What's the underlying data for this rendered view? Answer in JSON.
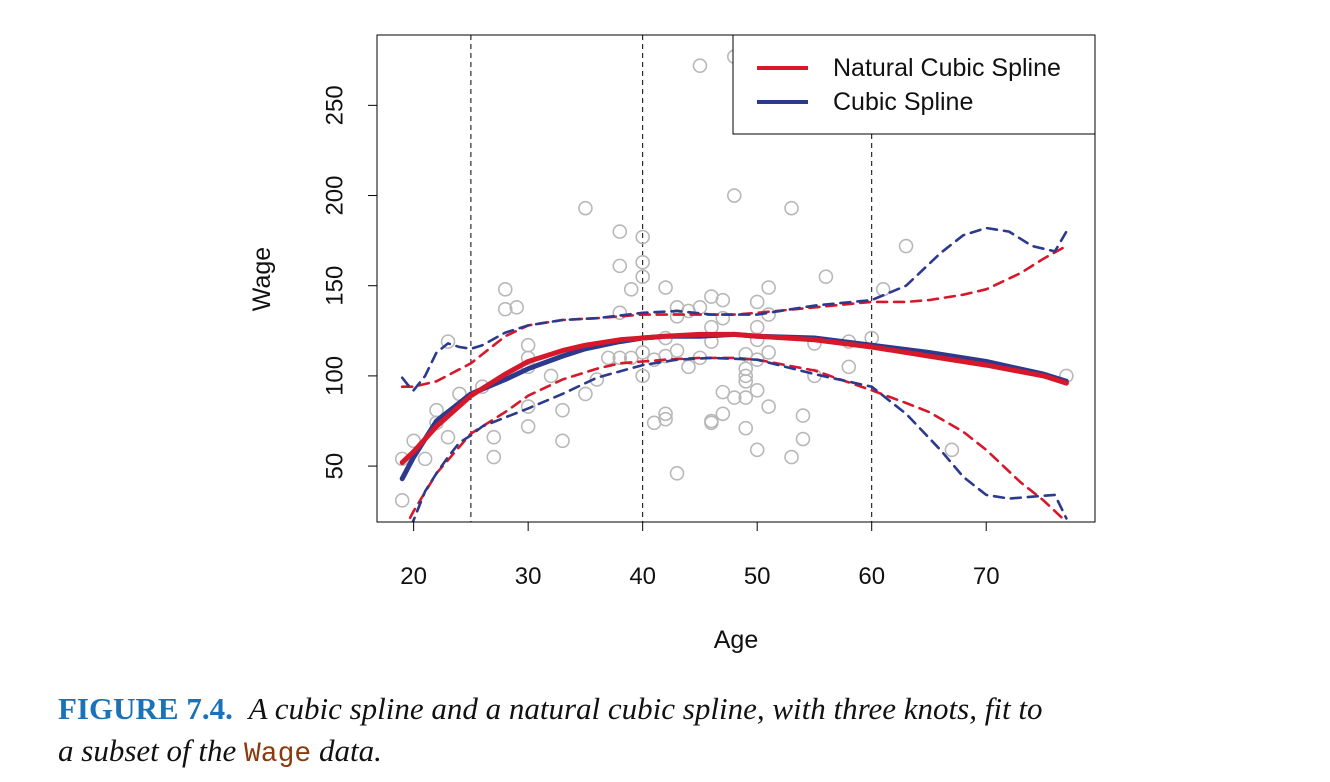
{
  "chart_data": {
    "type": "line",
    "xlabel": "Age",
    "ylabel": "Wage",
    "xlim": [
      16.8,
      79.5
    ],
    "ylim": [
      19,
      289
    ],
    "xticks": [
      20,
      30,
      40,
      50,
      60,
      70
    ],
    "yticks": [
      50,
      100,
      150,
      200,
      250
    ],
    "knots": [
      25,
      40,
      60
    ],
    "legend": {
      "position": "top-right",
      "entries": [
        {
          "label": "Natural Cubic Spline",
          "color": "#d7182a"
        },
        {
          "label": "Cubic Spline",
          "color": "#2b3a8c"
        }
      ]
    },
    "scatter": {
      "color": "#b8b8b8",
      "points": [
        [
          19,
          31
        ],
        [
          19,
          54
        ],
        [
          20,
          64
        ],
        [
          21,
          54
        ],
        [
          22,
          81
        ],
        [
          22,
          74
        ],
        [
          23,
          119
        ],
        [
          23,
          66
        ],
        [
          24,
          90
        ],
        [
          26,
          94
        ],
        [
          27,
          66
        ],
        [
          27,
          55
        ],
        [
          28,
          148
        ],
        [
          28,
          137
        ],
        [
          29,
          138
        ],
        [
          30,
          117
        ],
        [
          30,
          110
        ],
        [
          30,
          105
        ],
        [
          30,
          83
        ],
        [
          30,
          72
        ],
        [
          32,
          100
        ],
        [
          33,
          81
        ],
        [
          33,
          64
        ],
        [
          35,
          193
        ],
        [
          35,
          90
        ],
        [
          36,
          98
        ],
        [
          37,
          110
        ],
        [
          38,
          180
        ],
        [
          38,
          161
        ],
        [
          38,
          135
        ],
        [
          38,
          110
        ],
        [
          39,
          148
        ],
        [
          39,
          110
        ],
        [
          40,
          177
        ],
        [
          40,
          163
        ],
        [
          40,
          155
        ],
        [
          40,
          113
        ],
        [
          40,
          100
        ],
        [
          41,
          109
        ],
        [
          41,
          74
        ],
        [
          42,
          149
        ],
        [
          42,
          121
        ],
        [
          42,
          111
        ],
        [
          42,
          79
        ],
        [
          42,
          76
        ],
        [
          43,
          138
        ],
        [
          43,
          133
        ],
        [
          43,
          114
        ],
        [
          43,
          46
        ],
        [
          44,
          136
        ],
        [
          44,
          105
        ],
        [
          45,
          272
        ],
        [
          45,
          138
        ],
        [
          45,
          110
        ],
        [
          46,
          144
        ],
        [
          46,
          127
        ],
        [
          46,
          119
        ],
        [
          46,
          75
        ],
        [
          46,
          74
        ],
        [
          47,
          142
        ],
        [
          47,
          132
        ],
        [
          47,
          91
        ],
        [
          47,
          79
        ],
        [
          48,
          277
        ],
        [
          48,
          200
        ],
        [
          48,
          88
        ],
        [
          49,
          112
        ],
        [
          49,
          104
        ],
        [
          49,
          100
        ],
        [
          49,
          97
        ],
        [
          49,
          88
        ],
        [
          49,
          71
        ],
        [
          50,
          141
        ],
        [
          50,
          127
        ],
        [
          50,
          120
        ],
        [
          50,
          109
        ],
        [
          50,
          92
        ],
        [
          50,
          59
        ],
        [
          51,
          282
        ],
        [
          51,
          149
        ],
        [
          51,
          134
        ],
        [
          51,
          113
        ],
        [
          51,
          83
        ],
        [
          53,
          193
        ],
        [
          53,
          55
        ],
        [
          54,
          78
        ],
        [
          54,
          65
        ],
        [
          55,
          118
        ],
        [
          55,
          100
        ],
        [
          56,
          155
        ],
        [
          58,
          119
        ],
        [
          58,
          105
        ],
        [
          60,
          121
        ],
        [
          61,
          148
        ],
        [
          63,
          172
        ],
        [
          67,
          59
        ],
        [
          77,
          100
        ]
      ]
    },
    "series": [
      {
        "name": "Natural Cubic Spline",
        "color": "#d7182a",
        "style": "solid",
        "x": [
          19,
          20,
          22,
          25,
          28,
          30,
          33,
          35,
          38,
          40,
          42,
          45,
          48,
          50,
          55,
          60,
          65,
          70,
          75,
          77
        ],
        "y": [
          52,
          58,
          72,
          89,
          101,
          108,
          114,
          117,
          120,
          121,
          122,
          123,
          123,
          122,
          120,
          116,
          111,
          106,
          100,
          96
        ]
      },
      {
        "name": "Cubic Spline",
        "color": "#2b3a8c",
        "style": "solid",
        "x": [
          19,
          20,
          22,
          25,
          28,
          30,
          33,
          35,
          38,
          40,
          42,
          45,
          48,
          50,
          55,
          60,
          65,
          70,
          75,
          77
        ],
        "y": [
          43,
          55,
          75,
          90,
          98,
          104,
          111,
          115,
          119,
          121,
          122,
          122,
          123,
          122,
          121,
          117,
          113,
          108,
          101,
          97
        ]
      },
      {
        "name": "Natural Cubic Spline",
        "color": "#d7182a",
        "style": "dashed",
        "x": [
          19,
          20,
          22,
          25,
          28,
          30,
          33,
          36,
          38,
          40,
          42,
          45,
          48,
          50,
          55,
          60,
          63,
          65,
          68,
          70,
          73,
          75,
          77
        ],
        "y": [
          94,
          94,
          97,
          107,
          122,
          128,
          131,
          132,
          133,
          134,
          134,
          134,
          134,
          135,
          138,
          141,
          141,
          142,
          145,
          148,
          157,
          165,
          172
        ]
      },
      {
        "name": "Natural Cubic Spline",
        "color": "#d7182a",
        "style": "dashed",
        "x": [
          19,
          20,
          22,
          25,
          28,
          30,
          33,
          36,
          38,
          40,
          42,
          45,
          48,
          50,
          55,
          60,
          63,
          65,
          68,
          70,
          73,
          75,
          77
        ],
        "y": [
          13,
          25,
          46,
          68,
          80,
          89,
          98,
          104,
          107,
          108,
          109,
          110,
          110,
          109,
          103,
          92,
          85,
          80,
          69,
          59,
          41,
          31,
          19
        ]
      },
      {
        "name": "Cubic Spline",
        "color": "#2b3a8c",
        "style": "dashed",
        "x": [
          19,
          19.5,
          20,
          21,
          22,
          23,
          24,
          25,
          26,
          28,
          30,
          33,
          36,
          40,
          43,
          46,
          50,
          55,
          60,
          63,
          66,
          68,
          70,
          72,
          74,
          76,
          77
        ],
        "y": [
          99,
          95,
          92,
          100,
          113,
          118,
          116,
          115,
          117,
          124,
          128,
          131,
          132,
          135,
          136,
          134,
          134,
          139,
          142,
          150,
          168,
          178,
          182,
          180,
          172,
          169,
          180
        ]
      },
      {
        "name": "Cubic Spline",
        "color": "#2b3a8c",
        "style": "dashed",
        "x": [
          19,
          20,
          21,
          22,
          23,
          24,
          25,
          26,
          28,
          30,
          33,
          36,
          40,
          43,
          46,
          50,
          55,
          60,
          63,
          66,
          68,
          70,
          72,
          74,
          76,
          77
        ],
        "y": [
          8,
          20,
          36,
          46,
          55,
          63,
          67,
          72,
          77,
          82,
          90,
          99,
          106,
          109,
          110,
          109,
          101,
          94,
          79,
          59,
          44,
          34,
          32,
          33,
          34,
          21
        ]
      }
    ]
  },
  "caption": {
    "label": "FIGURE 7.4.",
    "text": "A cubic spline and a natural cubic spline, with three knots, fit to",
    "text2": "a subset of the",
    "code": "Wage",
    "text3": "data."
  }
}
